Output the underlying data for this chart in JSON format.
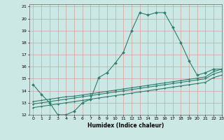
{
  "title": "",
  "xlabel": "Humidex (Indice chaleur)",
  "ylabel": "",
  "bg_color": "#cce8e4",
  "grid_color": "#d9a0a0",
  "line_color": "#2e7d6e",
  "xlim": [
    -0.5,
    23
  ],
  "ylim": [
    12,
    21.2
  ],
  "xticks": [
    0,
    1,
    2,
    3,
    4,
    5,
    6,
    7,
    8,
    9,
    10,
    11,
    12,
    13,
    14,
    15,
    16,
    17,
    18,
    19,
    20,
    21,
    22,
    23
  ],
  "yticks": [
    12,
    13,
    14,
    15,
    16,
    17,
    18,
    19,
    20,
    21
  ],
  "series0": {
    "x": [
      0,
      1,
      2,
      3,
      4,
      5,
      6,
      7,
      8,
      9,
      10,
      11,
      12,
      13,
      14,
      15,
      16,
      17,
      18,
      19,
      20,
      21,
      22,
      23
    ],
    "y": [
      14.5,
      13.7,
      13.0,
      12.0,
      12.0,
      12.3,
      13.0,
      13.3,
      15.1,
      15.5,
      16.3,
      17.2,
      19.0,
      20.5,
      20.3,
      20.5,
      20.5,
      19.3,
      18.0,
      16.5,
      15.3,
      15.5,
      15.8,
      15.8
    ]
  },
  "series1": {
    "x": [
      0,
      1,
      2,
      3,
      4,
      5,
      6,
      7,
      8,
      9,
      10,
      11,
      12,
      13,
      14,
      15,
      16,
      17,
      18,
      19,
      20,
      21,
      22,
      23
    ],
    "y": [
      13.1,
      13.2,
      13.3,
      13.4,
      13.5,
      13.55,
      13.65,
      13.75,
      13.85,
      13.95,
      14.05,
      14.15,
      14.25,
      14.35,
      14.45,
      14.55,
      14.65,
      14.75,
      14.85,
      14.95,
      15.05,
      15.15,
      15.6,
      15.8
    ]
  },
  "series2": {
    "x": [
      0,
      1,
      2,
      3,
      4,
      5,
      6,
      7,
      8,
      9,
      10,
      11,
      12,
      13,
      14,
      15,
      16,
      17,
      18,
      19,
      20,
      21,
      22,
      23
    ],
    "y": [
      12.9,
      13.0,
      13.1,
      13.2,
      13.3,
      13.4,
      13.5,
      13.6,
      13.7,
      13.8,
      13.9,
      14.0,
      14.1,
      14.2,
      14.3,
      14.4,
      14.5,
      14.6,
      14.7,
      14.8,
      14.9,
      15.0,
      15.4,
      15.6
    ]
  },
  "series3": {
    "x": [
      0,
      1,
      2,
      3,
      4,
      5,
      6,
      7,
      8,
      9,
      10,
      11,
      12,
      13,
      14,
      15,
      16,
      17,
      18,
      19,
      20,
      21,
      22,
      23
    ],
    "y": [
      12.6,
      12.7,
      12.8,
      12.9,
      13.0,
      13.1,
      13.2,
      13.3,
      13.4,
      13.5,
      13.6,
      13.7,
      13.8,
      13.9,
      14.0,
      14.1,
      14.2,
      14.3,
      14.4,
      14.5,
      14.6,
      14.7,
      15.1,
      15.3
    ]
  }
}
